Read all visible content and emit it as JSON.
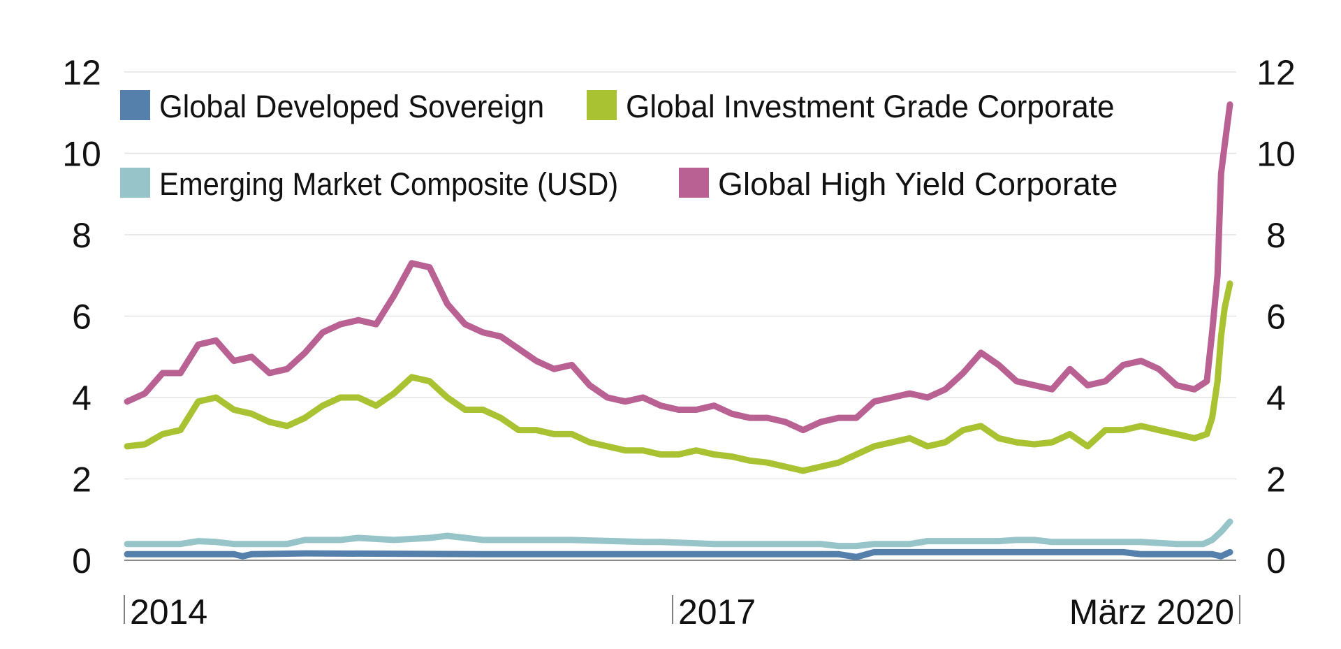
{
  "chart_data": {
    "type": "line",
    "title": "",
    "xlabel": "",
    "ylabel": "",
    "ylim": [
      0,
      12
    ],
    "xlim": [
      2014.0,
      2020.2
    ],
    "yticks": [
      "0",
      "2",
      "4",
      "6",
      "8",
      "10",
      "12"
    ],
    "y_axis_both_sides": true,
    "grid": "horizontal",
    "legend_placement": "top-left",
    "xtick_labels": [
      {
        "x": 2014.0,
        "label": "2014"
      },
      {
        "x": 2017.0,
        "label": "2017"
      },
      {
        "x": 2020.2,
        "label": "März 2020"
      }
    ],
    "series": [
      {
        "name": "Global Developed Sovereign",
        "color": "#5580ab",
        "points": [
          [
            2014.0,
            0.15
          ],
          [
            2014.6,
            0.15
          ],
          [
            2014.65,
            0.1
          ],
          [
            2014.7,
            0.15
          ],
          [
            2015.0,
            0.17
          ],
          [
            2016.0,
            0.15
          ],
          [
            2017.0,
            0.15
          ],
          [
            2017.5,
            0.15
          ],
          [
            2018.0,
            0.15
          ],
          [
            2018.1,
            0.08
          ],
          [
            2018.2,
            0.2
          ],
          [
            2018.6,
            0.2
          ],
          [
            2019.0,
            0.2
          ],
          [
            2019.6,
            0.2
          ],
          [
            2019.7,
            0.15
          ],
          [
            2020.1,
            0.15
          ],
          [
            2020.15,
            0.1
          ],
          [
            2020.2,
            0.2
          ]
        ]
      },
      {
        "name": "Global Investment Grade Corporate",
        "color": "#a8c232",
        "points": [
          [
            2014.0,
            2.8
          ],
          [
            2014.1,
            2.85
          ],
          [
            2014.2,
            3.1
          ],
          [
            2014.3,
            3.2
          ],
          [
            2014.4,
            3.9
          ],
          [
            2014.5,
            4.0
          ],
          [
            2014.6,
            3.7
          ],
          [
            2014.7,
            3.6
          ],
          [
            2014.8,
            3.4
          ],
          [
            2014.9,
            3.3
          ],
          [
            2015.0,
            3.5
          ],
          [
            2015.1,
            3.8
          ],
          [
            2015.2,
            4.0
          ],
          [
            2015.3,
            4.0
          ],
          [
            2015.4,
            3.8
          ],
          [
            2015.5,
            4.1
          ],
          [
            2015.6,
            4.5
          ],
          [
            2015.7,
            4.4
          ],
          [
            2015.8,
            4.0
          ],
          [
            2015.9,
            3.7
          ],
          [
            2016.0,
            3.7
          ],
          [
            2016.1,
            3.5
          ],
          [
            2016.2,
            3.2
          ],
          [
            2016.3,
            3.2
          ],
          [
            2016.4,
            3.1
          ],
          [
            2016.5,
            3.1
          ],
          [
            2016.6,
            2.9
          ],
          [
            2016.7,
            2.8
          ],
          [
            2016.8,
            2.7
          ],
          [
            2016.9,
            2.7
          ],
          [
            2017.0,
            2.6
          ],
          [
            2017.1,
            2.6
          ],
          [
            2017.2,
            2.7
          ],
          [
            2017.3,
            2.6
          ],
          [
            2017.4,
            2.55
          ],
          [
            2017.5,
            2.45
          ],
          [
            2017.6,
            2.4
          ],
          [
            2017.7,
            2.3
          ],
          [
            2017.8,
            2.2
          ],
          [
            2017.9,
            2.3
          ],
          [
            2018.0,
            2.4
          ],
          [
            2018.1,
            2.6
          ],
          [
            2018.2,
            2.8
          ],
          [
            2018.3,
            2.9
          ],
          [
            2018.4,
            3.0
          ],
          [
            2018.5,
            2.8
          ],
          [
            2018.6,
            2.9
          ],
          [
            2018.7,
            3.2
          ],
          [
            2018.8,
            3.3
          ],
          [
            2018.9,
            3.0
          ],
          [
            2019.0,
            2.9
          ],
          [
            2019.1,
            2.85
          ],
          [
            2019.2,
            2.9
          ],
          [
            2019.3,
            3.1
          ],
          [
            2019.4,
            2.8
          ],
          [
            2019.5,
            3.2
          ],
          [
            2019.6,
            3.2
          ],
          [
            2019.7,
            3.3
          ],
          [
            2019.8,
            3.2
          ],
          [
            2019.9,
            3.1
          ],
          [
            2020.0,
            3.0
          ],
          [
            2020.07,
            3.1
          ],
          [
            2020.1,
            3.5
          ],
          [
            2020.13,
            4.4
          ],
          [
            2020.15,
            5.5
          ],
          [
            2020.17,
            6.2
          ],
          [
            2020.2,
            6.8
          ]
        ]
      },
      {
        "name": "Emerging Market Composite (USD)",
        "color": "#96c4c8",
        "points": [
          [
            2014.0,
            0.4
          ],
          [
            2014.3,
            0.4
          ],
          [
            2014.4,
            0.47
          ],
          [
            2014.5,
            0.45
          ],
          [
            2014.6,
            0.4
          ],
          [
            2014.9,
            0.4
          ],
          [
            2015.0,
            0.5
          ],
          [
            2015.2,
            0.5
          ],
          [
            2015.3,
            0.55
          ],
          [
            2015.5,
            0.5
          ],
          [
            2015.7,
            0.55
          ],
          [
            2015.8,
            0.6
          ],
          [
            2016.0,
            0.5
          ],
          [
            2016.5,
            0.5
          ],
          [
            2016.9,
            0.45
          ],
          [
            2017.0,
            0.45
          ],
          [
            2017.3,
            0.4
          ],
          [
            2017.9,
            0.4
          ],
          [
            2018.0,
            0.35
          ],
          [
            2018.1,
            0.35
          ],
          [
            2018.2,
            0.4
          ],
          [
            2018.4,
            0.4
          ],
          [
            2018.5,
            0.47
          ],
          [
            2018.9,
            0.47
          ],
          [
            2019.0,
            0.5
          ],
          [
            2019.1,
            0.5
          ],
          [
            2019.2,
            0.45
          ],
          [
            2019.7,
            0.45
          ],
          [
            2019.9,
            0.4
          ],
          [
            2020.05,
            0.4
          ],
          [
            2020.1,
            0.5
          ],
          [
            2020.15,
            0.7
          ],
          [
            2020.2,
            0.95
          ]
        ]
      },
      {
        "name": "Global High Yield Corporate",
        "color": "#b96193",
        "points": [
          [
            2014.0,
            3.9
          ],
          [
            2014.1,
            4.1
          ],
          [
            2014.2,
            4.6
          ],
          [
            2014.3,
            4.6
          ],
          [
            2014.4,
            5.3
          ],
          [
            2014.5,
            5.4
          ],
          [
            2014.6,
            4.9
          ],
          [
            2014.7,
            5.0
          ],
          [
            2014.8,
            4.6
          ],
          [
            2014.9,
            4.7
          ],
          [
            2015.0,
            5.1
          ],
          [
            2015.1,
            5.6
          ],
          [
            2015.2,
            5.8
          ],
          [
            2015.3,
            5.9
          ],
          [
            2015.4,
            5.8
          ],
          [
            2015.5,
            6.5
          ],
          [
            2015.6,
            7.3
          ],
          [
            2015.7,
            7.2
          ],
          [
            2015.8,
            6.3
          ],
          [
            2015.9,
            5.8
          ],
          [
            2016.0,
            5.6
          ],
          [
            2016.1,
            5.5
          ],
          [
            2016.2,
            5.2
          ],
          [
            2016.3,
            4.9
          ],
          [
            2016.4,
            4.7
          ],
          [
            2016.5,
            4.8
          ],
          [
            2016.6,
            4.3
          ],
          [
            2016.7,
            4.0
          ],
          [
            2016.8,
            3.9
          ],
          [
            2016.9,
            4.0
          ],
          [
            2017.0,
            3.8
          ],
          [
            2017.1,
            3.7
          ],
          [
            2017.2,
            3.7
          ],
          [
            2017.3,
            3.8
          ],
          [
            2017.4,
            3.6
          ],
          [
            2017.5,
            3.5
          ],
          [
            2017.6,
            3.5
          ],
          [
            2017.7,
            3.4
          ],
          [
            2017.8,
            3.2
          ],
          [
            2017.9,
            3.4
          ],
          [
            2018.0,
            3.5
          ],
          [
            2018.1,
            3.5
          ],
          [
            2018.2,
            3.9
          ],
          [
            2018.3,
            4.0
          ],
          [
            2018.4,
            4.1
          ],
          [
            2018.5,
            4.0
          ],
          [
            2018.6,
            4.2
          ],
          [
            2018.7,
            4.6
          ],
          [
            2018.8,
            5.1
          ],
          [
            2018.9,
            4.8
          ],
          [
            2019.0,
            4.4
          ],
          [
            2019.1,
            4.3
          ],
          [
            2019.2,
            4.2
          ],
          [
            2019.3,
            4.7
          ],
          [
            2019.4,
            4.3
          ],
          [
            2019.5,
            4.4
          ],
          [
            2019.6,
            4.8
          ],
          [
            2019.7,
            4.9
          ],
          [
            2019.8,
            4.7
          ],
          [
            2019.9,
            4.3
          ],
          [
            2020.0,
            4.2
          ],
          [
            2020.07,
            4.4
          ],
          [
            2020.1,
            5.6
          ],
          [
            2020.13,
            7.0
          ],
          [
            2020.15,
            9.5
          ],
          [
            2020.17,
            10.2
          ],
          [
            2020.2,
            11.2
          ]
        ]
      }
    ]
  }
}
